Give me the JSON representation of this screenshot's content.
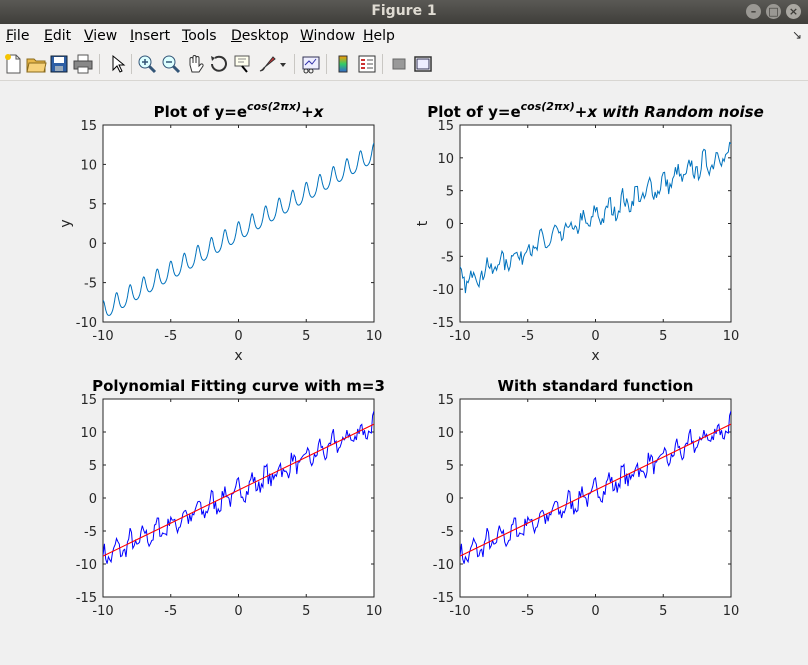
{
  "window": {
    "title": "Figure 1",
    "min_glyph": "–",
    "max_glyph": "□",
    "close_glyph": "×"
  },
  "menu": [
    {
      "label": "File",
      "accel": "F",
      "rest": "ile"
    },
    {
      "label": "Edit",
      "accel": "E",
      "rest": "dit"
    },
    {
      "label": "View",
      "accel": "V",
      "rest": "iew"
    },
    {
      "label": "Insert",
      "accel": "I",
      "rest": "nsert"
    },
    {
      "label": "Tools",
      "accel": "T",
      "rest": "ools"
    },
    {
      "label": "Desktop",
      "accel": "D",
      "rest": "esktop"
    },
    {
      "label": "Window",
      "accel": "W",
      "rest": "indow"
    },
    {
      "label": "Help",
      "accel": "H",
      "rest": "elp"
    }
  ],
  "toolbar": {
    "icons": [
      "new-figure-icon",
      "open-file-icon",
      "save-icon",
      "print-icon",
      "pointer-icon",
      "zoom-in-icon",
      "zoom-out-icon",
      "pan-hand-icon",
      "rotate-3d-icon",
      "data-cursor-icon",
      "brush-icon",
      "brush-dropdown-icon",
      "link-plot-icon",
      "insert-colorbar-icon",
      "insert-legend-icon",
      "hide-plot-tools-icon",
      "show-plot-tools-icon"
    ]
  },
  "colors": {
    "sine": "#0072bd",
    "noisy": "#0000ff",
    "fit": "#ff0000",
    "axes_bg": "#ffffff"
  },
  "chart_data": [
    {
      "type": "line",
      "title_prefix": "Plot of y=e",
      "title_sup": "cos(2πx)",
      "title_suffix": "+x",
      "title_suffix_italic": false,
      "xlabel": "x",
      "ylabel": "y",
      "xlim": [
        -10,
        10
      ],
      "ylim": [
        -10,
        15
      ],
      "xticks": [
        -10,
        -5,
        0,
        5,
        10
      ],
      "yticks": [
        -10,
        -5,
        0,
        5,
        10,
        15
      ],
      "series": [
        {
          "label": "",
          "values_formula": "y = exp(cos(2*pi*x)) + x",
          "x_range": [
            -10,
            10
          ],
          "sample_step": 0.02,
          "color": "#0072bd"
        }
      ]
    },
    {
      "type": "line",
      "title_prefix": "Plot of y=e",
      "title_sup": "cos(2πx)",
      "title_suffix": "+x with Random noise",
      "title_suffix_italic": true,
      "xlabel": "x",
      "ylabel": "t",
      "xlim": [
        -10,
        10
      ],
      "ylim": [
        -15,
        15
      ],
      "xticks": [
        -10,
        -5,
        0,
        5,
        10
      ],
      "yticks": [
        -15,
        -10,
        -5,
        0,
        5,
        10,
        15
      ],
      "series": [
        {
          "label": "",
          "values_formula": "t = exp(cos(2*pi*x)) + x + noise",
          "x_range": [
            -10,
            10
          ],
          "sample_step": 0.1,
          "noise_amplitude": 1.2,
          "color": "#0072bd"
        }
      ]
    },
    {
      "type": "line",
      "title": "Polynomial Fitting curve with m=3",
      "xlabel": "",
      "ylabel": "",
      "xlim": [
        -10,
        10
      ],
      "ylim": [
        -15,
        15
      ],
      "xticks": [
        -10,
        -5,
        0,
        5,
        10
      ],
      "yticks": [
        -15,
        -10,
        -5,
        0,
        5,
        10,
        15
      ],
      "series": [
        {
          "label": "",
          "values_formula": "noisy data",
          "x_range": [
            -10,
            10
          ],
          "sample_step": 0.1,
          "noise_amplitude": 1.2,
          "color": "#0000ff"
        },
        {
          "label": "",
          "values_formula": "cubic fit ≈ 1.0*x + 1.2",
          "x": [
            -10,
            -5,
            0,
            5,
            10
          ],
          "y": [
            -8.8,
            -3.8,
            1.2,
            6.2,
            11.2
          ],
          "color": "#ff0000"
        }
      ]
    },
    {
      "type": "line",
      "title": "With standard function",
      "xlabel": "",
      "ylabel": "",
      "xlim": [
        -10,
        10
      ],
      "ylim": [
        -15,
        15
      ],
      "xticks": [
        -10,
        -5,
        0,
        5,
        10
      ],
      "yticks": [
        -15,
        -10,
        -5,
        0,
        5,
        10,
        15
      ],
      "series": [
        {
          "label": "",
          "values_formula": "noisy data",
          "x_range": [
            -10,
            10
          ],
          "sample_step": 0.1,
          "noise_amplitude": 1.2,
          "color": "#0000ff"
        },
        {
          "label": "",
          "values_formula": "fit ≈ 1.0*x + 1.2",
          "x": [
            -10,
            -5,
            0,
            5,
            10
          ],
          "y": [
            -8.8,
            -3.8,
            1.2,
            6.2,
            11.2
          ],
          "color": "#ff0000"
        }
      ]
    }
  ]
}
